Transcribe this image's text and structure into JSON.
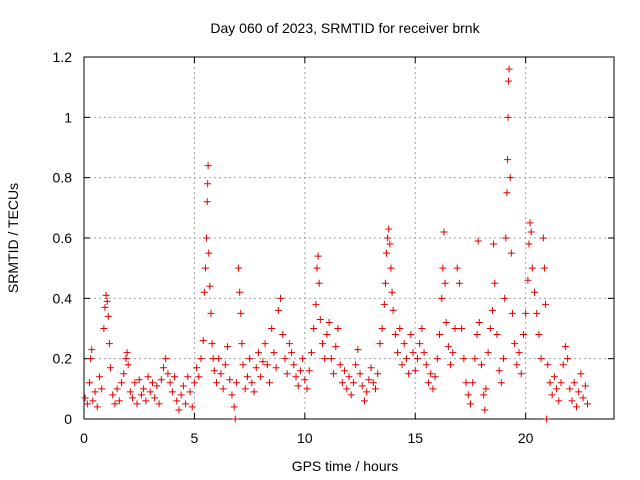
{
  "chart_data": {
    "type": "scatter",
    "title": "Day 060 of 2023, SRMTID for receiver brnk",
    "xlabel": "GPS time / hours",
    "ylabel": "SRMTID / TECUs",
    "xlim": [
      0,
      24
    ],
    "ylim": [
      0,
      1.2
    ],
    "x_ticks": [
      0,
      5,
      10,
      15,
      20
    ],
    "x_tick_labels": [
      "0",
      "5",
      "10",
      "15",
      "20"
    ],
    "y_ticks": [
      0,
      0.2,
      0.4,
      0.6,
      0.8,
      1.0,
      1.2
    ],
    "y_tick_labels": [
      "0",
      "0.2",
      "0.4",
      "0.6",
      "0.8",
      "1",
      "1.2"
    ],
    "grid": true,
    "marker": "+",
    "marker_color": "#e00000",
    "series": [
      {
        "name": "SRMTID",
        "points": [
          [
            0.05,
            0.07
          ],
          [
            0.15,
            0.05
          ],
          [
            0.25,
            0.12
          ],
          [
            0.3,
            0.2
          ],
          [
            0.35,
            0.23
          ],
          [
            0.4,
            0.06
          ],
          [
            0.5,
            0.09
          ],
          [
            0.6,
            0.04
          ],
          [
            0.7,
            0.14
          ],
          [
            0.8,
            0.1
          ],
          [
            0.9,
            0.3
          ],
          [
            0.95,
            0.37
          ],
          [
            1.0,
            0.41
          ],
          [
            1.05,
            0.39
          ],
          [
            1.1,
            0.34
          ],
          [
            1.15,
            0.25
          ],
          [
            1.2,
            0.17
          ],
          [
            1.3,
            0.08
          ],
          [
            1.4,
            0.05
          ],
          [
            1.5,
            0.1
          ],
          [
            1.6,
            0.06
          ],
          [
            1.7,
            0.12
          ],
          [
            1.8,
            0.15
          ],
          [
            1.9,
            0.2
          ],
          [
            1.95,
            0.22
          ],
          [
            2.0,
            0.18
          ],
          [
            2.1,
            0.09
          ],
          [
            2.2,
            0.07
          ],
          [
            2.3,
            0.12
          ],
          [
            2.4,
            0.05
          ],
          [
            2.5,
            0.13
          ],
          [
            2.6,
            0.08
          ],
          [
            2.7,
            0.1
          ],
          [
            2.8,
            0.06
          ],
          [
            2.9,
            0.14
          ],
          [
            3.0,
            0.09
          ],
          [
            3.1,
            0.12
          ],
          [
            3.2,
            0.07
          ],
          [
            3.3,
            0.11
          ],
          [
            3.4,
            0.05
          ],
          [
            3.5,
            0.13
          ],
          [
            3.6,
            0.17
          ],
          [
            3.7,
            0.2
          ],
          [
            3.8,
            0.15
          ],
          [
            3.9,
            0.12
          ],
          [
            4.0,
            0.09
          ],
          [
            4.1,
            0.14
          ],
          [
            4.2,
            0.06
          ],
          [
            4.3,
            0.03
          ],
          [
            4.4,
            0.08
          ],
          [
            4.5,
            0.11
          ],
          [
            4.6,
            0.05
          ],
          [
            4.7,
            0.14
          ],
          [
            4.8,
            0.09
          ],
          [
            4.9,
            0.04
          ],
          [
            5.0,
            0.12
          ],
          [
            5.1,
            0.17
          ],
          [
            5.2,
            0.14
          ],
          [
            5.3,
            0.2
          ],
          [
            5.4,
            0.26
          ],
          [
            5.45,
            0.42
          ],
          [
            5.5,
            0.5
          ],
          [
            5.55,
            0.6
          ],
          [
            5.58,
            0.72
          ],
          [
            5.6,
            0.78
          ],
          [
            5.62,
            0.84
          ],
          [
            5.65,
            0.55
          ],
          [
            5.7,
            0.44
          ],
          [
            5.75,
            0.35
          ],
          [
            5.8,
            0.25
          ],
          [
            5.85,
            0.2
          ],
          [
            5.9,
            0.16
          ],
          [
            6.0,
            0.12
          ],
          [
            6.1,
            0.2
          ],
          [
            6.2,
            0.15
          ],
          [
            6.3,
            0.1
          ],
          [
            6.4,
            0.18
          ],
          [
            6.5,
            0.24
          ],
          [
            6.6,
            0.13
          ],
          [
            6.7,
            0.08
          ],
          [
            6.8,
            0.04
          ],
          [
            6.85,
            0.0
          ],
          [
            6.9,
            0.12
          ],
          [
            7.0,
            0.5
          ],
          [
            7.05,
            0.42
          ],
          [
            7.1,
            0.35
          ],
          [
            7.15,
            0.25
          ],
          [
            7.2,
            0.18
          ],
          [
            7.3,
            0.1
          ],
          [
            7.4,
            0.14
          ],
          [
            7.5,
            0.2
          ],
          [
            7.6,
            0.12
          ],
          [
            7.7,
            0.09
          ],
          [
            7.8,
            0.17
          ],
          [
            7.9,
            0.22
          ],
          [
            8.0,
            0.14
          ],
          [
            8.1,
            0.19
          ],
          [
            8.2,
            0.25
          ],
          [
            8.3,
            0.18
          ],
          [
            8.4,
            0.12
          ],
          [
            8.5,
            0.3
          ],
          [
            8.6,
            0.22
          ],
          [
            8.7,
            0.17
          ],
          [
            8.8,
            0.36
          ],
          [
            8.9,
            0.4
          ],
          [
            9.0,
            0.28
          ],
          [
            9.1,
            0.2
          ],
          [
            9.2,
            0.15
          ],
          [
            9.3,
            0.25
          ],
          [
            9.4,
            0.22
          ],
          [
            9.5,
            0.18
          ],
          [
            9.6,
            0.14
          ],
          [
            9.7,
            0.11
          ],
          [
            9.8,
            0.16
          ],
          [
            9.9,
            0.2
          ],
          [
            10.0,
            0.13
          ],
          [
            10.1,
            0.1
          ],
          [
            10.2,
            0.16
          ],
          [
            10.3,
            0.22
          ],
          [
            10.4,
            0.3
          ],
          [
            10.5,
            0.38
          ],
          [
            10.55,
            0.5
          ],
          [
            10.6,
            0.54
          ],
          [
            10.65,
            0.45
          ],
          [
            10.7,
            0.33
          ],
          [
            10.8,
            0.25
          ],
          [
            10.9,
            0.2
          ],
          [
            11.0,
            0.28
          ],
          [
            11.1,
            0.32
          ],
          [
            11.2,
            0.2
          ],
          [
            11.3,
            0.15
          ],
          [
            11.4,
            0.24
          ],
          [
            11.5,
            0.3
          ],
          [
            11.6,
            0.18
          ],
          [
            11.7,
            0.12
          ],
          [
            11.8,
            0.16
          ],
          [
            11.9,
            0.1
          ],
          [
            12.0,
            0.14
          ],
          [
            12.1,
            0.08
          ],
          [
            12.2,
            0.12
          ],
          [
            12.3,
            0.18
          ],
          [
            12.4,
            0.23
          ],
          [
            12.5,
            0.15
          ],
          [
            12.6,
            0.11
          ],
          [
            12.7,
            0.06
          ],
          [
            12.8,
            0.09
          ],
          [
            12.9,
            0.13
          ],
          [
            13.0,
            0.17
          ],
          [
            13.1,
            0.12
          ],
          [
            13.2,
            0.1
          ],
          [
            13.3,
            0.15
          ],
          [
            13.4,
            0.25
          ],
          [
            13.5,
            0.3
          ],
          [
            13.6,
            0.38
          ],
          [
            13.65,
            0.45
          ],
          [
            13.7,
            0.55
          ],
          [
            13.75,
            0.6
          ],
          [
            13.8,
            0.63
          ],
          [
            13.85,
            0.58
          ],
          [
            13.9,
            0.5
          ],
          [
            13.95,
            0.42
          ],
          [
            14.0,
            0.36
          ],
          [
            14.1,
            0.28
          ],
          [
            14.2,
            0.22
          ],
          [
            14.3,
            0.3
          ],
          [
            14.4,
            0.18
          ],
          [
            14.5,
            0.25
          ],
          [
            14.6,
            0.2
          ],
          [
            14.7,
            0.15
          ],
          [
            14.8,
            0.28
          ],
          [
            14.9,
            0.22
          ],
          [
            15.0,
            0.16
          ],
          [
            15.1,
            0.2
          ],
          [
            15.2,
            0.25
          ],
          [
            15.3,
            0.3
          ],
          [
            15.4,
            0.22
          ],
          [
            15.5,
            0.18
          ],
          [
            15.6,
            0.12
          ],
          [
            15.7,
            0.15
          ],
          [
            15.8,
            0.1
          ],
          [
            15.9,
            0.14
          ],
          [
            16.0,
            0.2
          ],
          [
            16.1,
            0.28
          ],
          [
            16.2,
            0.4
          ],
          [
            16.25,
            0.5
          ],
          [
            16.3,
            0.62
          ],
          [
            16.35,
            0.45
          ],
          [
            16.4,
            0.32
          ],
          [
            16.5,
            0.24
          ],
          [
            16.6,
            0.18
          ],
          [
            16.7,
            0.22
          ],
          [
            16.8,
            0.3
          ],
          [
            16.9,
            0.5
          ],
          [
            17.0,
            0.45
          ],
          [
            17.1,
            0.3
          ],
          [
            17.2,
            0.2
          ],
          [
            17.3,
            0.12
          ],
          [
            17.4,
            0.08
          ],
          [
            17.5,
            0.05
          ],
          [
            17.6,
            0.12
          ],
          [
            17.7,
            0.2
          ],
          [
            17.8,
            0.28
          ],
          [
            17.85,
            0.59
          ],
          [
            17.9,
            0.32
          ],
          [
            18.0,
            0.18
          ],
          [
            18.1,
            0.08
          ],
          [
            18.15,
            0.03
          ],
          [
            18.2,
            0.1
          ],
          [
            18.3,
            0.22
          ],
          [
            18.4,
            0.3
          ],
          [
            18.5,
            0.36
          ],
          [
            18.55,
            0.58
          ],
          [
            18.6,
            0.45
          ],
          [
            18.7,
            0.28
          ],
          [
            18.8,
            0.16
          ],
          [
            18.9,
            0.12
          ],
          [
            19.0,
            0.2
          ],
          [
            19.05,
            0.4
          ],
          [
            19.1,
            0.6
          ],
          [
            19.15,
            0.75
          ],
          [
            19.18,
            0.86
          ],
          [
            19.2,
            1.0
          ],
          [
            19.22,
            1.12
          ],
          [
            19.25,
            1.16
          ],
          [
            19.3,
            0.8
          ],
          [
            19.35,
            0.55
          ],
          [
            19.4,
            0.35
          ],
          [
            19.5,
            0.25
          ],
          [
            19.6,
            0.18
          ],
          [
            19.7,
            0.22
          ],
          [
            19.8,
            0.15
          ],
          [
            19.9,
            0.28
          ],
          [
            20.0,
            0.35
          ],
          [
            20.1,
            0.46
          ],
          [
            20.15,
            0.58
          ],
          [
            20.2,
            0.65
          ],
          [
            20.25,
            0.62
          ],
          [
            20.3,
            0.5
          ],
          [
            20.4,
            0.42
          ],
          [
            20.5,
            0.35
          ],
          [
            20.6,
            0.28
          ],
          [
            20.7,
            0.2
          ],
          [
            20.8,
            0.6
          ],
          [
            20.85,
            0.5
          ],
          [
            20.9,
            0.38
          ],
          [
            20.95,
            0.0
          ],
          [
            21.0,
            0.18
          ],
          [
            21.1,
            0.12
          ],
          [
            21.2,
            0.08
          ],
          [
            21.3,
            0.14
          ],
          [
            21.4,
            0.1
          ],
          [
            21.5,
            0.06
          ],
          [
            21.6,
            0.12
          ],
          [
            21.7,
            0.18
          ],
          [
            21.8,
            0.24
          ],
          [
            21.9,
            0.2
          ],
          [
            22.0,
            0.1
          ],
          [
            22.1,
            0.06
          ],
          [
            22.2,
            0.12
          ],
          [
            22.3,
            0.04
          ],
          [
            22.4,
            0.09
          ],
          [
            22.5,
            0.15
          ],
          [
            22.6,
            0.07
          ],
          [
            22.7,
            0.11
          ],
          [
            22.8,
            0.05
          ]
        ]
      }
    ]
  }
}
